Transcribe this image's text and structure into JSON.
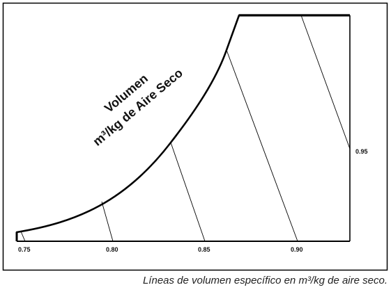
{
  "chart_data": {
    "type": "diagram",
    "title_line1": "Volumen",
    "title_line2": "m³/kg de Aire Seco",
    "tick_labels": [
      "0.75",
      "0.80",
      "0.85",
      "0.90",
      "0.95"
    ],
    "caption": "Líneas de volumen específico en m³/kg de aire seco."
  }
}
